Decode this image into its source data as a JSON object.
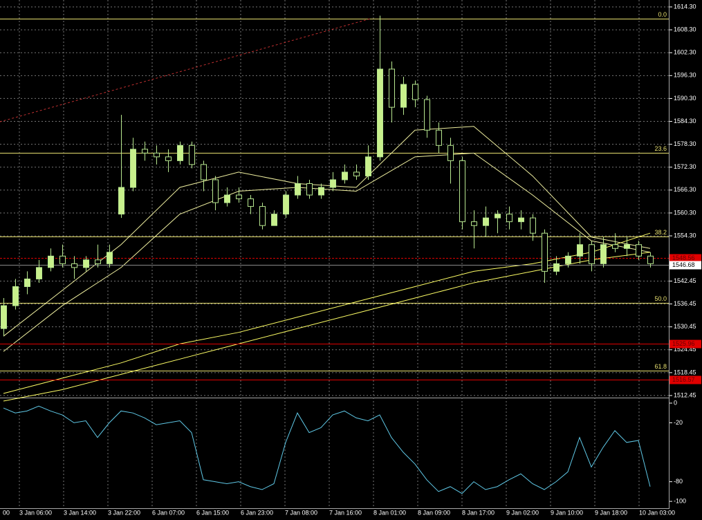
{
  "chart_data": [
    {
      "type": "candlestick",
      "x_labels": [
        "00",
        "3 Jan 06:00",
        "3 Jan 14:00",
        "3 Jan 22:00",
        "6 Jan 07:00",
        "6 Jan 15:00",
        "6 Jan 23:00",
        "7 Jan 08:00",
        "7 Jan 16:00",
        "8 Jan 01:00",
        "8 Jan 09:00",
        "8 Jan 17:00",
        "9 Jan 02:00",
        "9 Jan 10:00",
        "9 Jan 18:00",
        "10 Jan 03:00"
      ],
      "open": [
        1530,
        1536,
        1541,
        1543,
        1546,
        1549,
        1547,
        1546,
        1548,
        1547,
        1560,
        1567,
        1577,
        1576,
        1575,
        1574,
        1578,
        1573,
        1569,
        1563,
        1565,
        1564,
        1562,
        1557,
        1560,
        1565,
        1568,
        1565,
        1567,
        1569,
        1571,
        1570,
        1575,
        1598,
        1588,
        1594,
        1590,
        1582,
        1578,
        1574,
        1558,
        1557,
        1559,
        1560,
        1558,
        1559,
        1555,
        1545,
        1547,
        1549,
        1552,
        1547,
        1552,
        1551,
        1552,
        1549
      ],
      "high": [
        1538,
        1543,
        1545,
        1548,
        1551,
        1552,
        1549,
        1549,
        1552,
        1552,
        1586,
        1580,
        1579,
        1578,
        1577,
        1579,
        1579,
        1574,
        1570,
        1567,
        1567,
        1565,
        1563,
        1561,
        1566,
        1570,
        1569,
        1568,
        1571,
        1573,
        1573,
        1578,
        1612,
        1600,
        1596,
        1595,
        1591,
        1584,
        1580,
        1575,
        1561,
        1562,
        1561,
        1562,
        1561,
        1560,
        1556,
        1549,
        1550,
        1555,
        1553,
        1554,
        1555,
        1554,
        1553,
        1550
      ],
      "low": [
        1528,
        1535,
        1539,
        1542,
        1545,
        1546,
        1543,
        1545,
        1546,
        1546,
        1559,
        1566,
        1574,
        1573,
        1571,
        1573,
        1572,
        1566,
        1561,
        1562,
        1563,
        1560,
        1556,
        1557,
        1559,
        1564,
        1564,
        1564,
        1566,
        1568,
        1569,
        1569,
        1574,
        1584,
        1586,
        1588,
        1580,
        1576,
        1568,
        1556,
        1551,
        1554,
        1555,
        1556,
        1556,
        1553,
        1542,
        1544,
        1546,
        1547,
        1545,
        1546,
        1550,
        1549,
        1548,
        1546
      ],
      "close": [
        1536,
        1541,
        1543,
        1546,
        1549,
        1547,
        1546,
        1548,
        1547,
        1550,
        1567,
        1577,
        1576,
        1575,
        1574,
        1578,
        1573,
        1569,
        1563,
        1565,
        1564,
        1562,
        1557,
        1560,
        1565,
        1568,
        1565,
        1567,
        1569,
        1571,
        1570,
        1575,
        1598,
        1588,
        1594,
        1590,
        1582,
        1578,
        1574,
        1558,
        1557,
        1559,
        1560,
        1558,
        1559,
        1555,
        1545,
        1547,
        1549,
        1552,
        1547,
        1552,
        1551,
        1552,
        1549,
        1547
      ],
      "colors": {
        "bull": "#c8f08c",
        "bear": "#000000",
        "wick": "#b8e890"
      },
      "ylim": [
        1512.27,
        1616.11
      ],
      "yticks": [
        {
          "value": 1614.3,
          "label": "1614.30"
        },
        {
          "value": 1608.3,
          "label": "1608.30"
        },
        {
          "value": 1602.3,
          "label": "1602.30"
        },
        {
          "value": 1596.3,
          "label": "1596.30"
        },
        {
          "value": 1590.3,
          "label": "1590.30"
        },
        {
          "value": 1584.3,
          "label": "1584.30"
        },
        {
          "value": 1578.3,
          "label": "1578.30"
        },
        {
          "value": 1572.3,
          "label": "1572.30"
        },
        {
          "value": 1566.3,
          "label": "1566.30"
        },
        {
          "value": 1560.3,
          "label": "1560.30"
        },
        {
          "value": 1554.3,
          "label": "1554.30"
        },
        1542.45,
        1536.45,
        1530.45,
        1524.45,
        1518.45,
        1512.45
      ],
      "grid": true,
      "moving_averages": [
        {
          "color": "#f0f0a0",
          "x": [
            0,
            5,
            10,
            15,
            20,
            25,
            30,
            35,
            40,
            45,
            50,
            55
          ],
          "values": [
            1528,
            1540,
            1552,
            1567,
            1571,
            1568,
            1567,
            1582,
            1583,
            1570,
            1554,
            1551
          ]
        },
        {
          "color": "#f0f0a0",
          "x": [
            0,
            5,
            10,
            15,
            20,
            25,
            30,
            35,
            40,
            45,
            50,
            55
          ],
          "values": [
            1524,
            1536,
            1546,
            1560,
            1566,
            1567,
            1566,
            1575,
            1576,
            1565,
            1553,
            1550
          ]
        },
        {
          "color": "#ffff66",
          "x": [
            0,
            5,
            10,
            15,
            20,
            25,
            30,
            35,
            40,
            45,
            50,
            55
          ],
          "values": [
            1513,
            1517,
            1521,
            1526,
            1529,
            1533,
            1537,
            1541,
            1545,
            1547,
            1550,
            1555
          ]
        },
        {
          "color": "#ffff66",
          "x": [
            0,
            5,
            10,
            15,
            20,
            25,
            30,
            35,
            40,
            45,
            50,
            55
          ],
          "values": [
            1511,
            1514,
            1518,
            1522,
            1526,
            1530,
            1534,
            1538,
            1542,
            1545,
            1548,
            1550
          ]
        }
      ],
      "fib_levels": [
        {
          "label": "0.0",
          "value": 1611.2
        },
        {
          "label": "23.6",
          "value": 1576.0
        },
        {
          "label": "38.2",
          "value": 1554.2
        },
        {
          "label": "50.0",
          "value": 1536.7
        },
        {
          "label": "61.8",
          "value": 1518.9
        }
      ],
      "fib_color": "#e8e070",
      "price_lines": [
        1548.56,
        1525.96,
        1516.57
      ],
      "price_line_color": "#e00000",
      "current_price": 1546.68,
      "trendline": {
        "x": [
          -0.3,
          31.2
        ],
        "values": [
          1584.2,
          1611.2
        ],
        "color": "#c03030"
      }
    },
    {
      "type": "line",
      "color": "#5fc8e6",
      "values": [
        -5,
        -10,
        -8,
        -3,
        -8,
        -12,
        -20,
        -18,
        -35,
        -20,
        -8,
        -10,
        -15,
        -22,
        -20,
        -18,
        -30,
        -78,
        -80,
        -82,
        -80,
        -85,
        -88,
        -82,
        -40,
        -10,
        -30,
        -25,
        -12,
        -8,
        -15,
        -18,
        -12,
        -35,
        -50,
        -62,
        -78,
        -90,
        -85,
        -92,
        -80,
        -88,
        -85,
        -78,
        -72,
        -82,
        -88,
        -80,
        -70,
        -35,
        -65,
        -45,
        -28,
        -40,
        -38,
        -85
      ],
      "ylim": [
        -107,
        3.5
      ],
      "yticks": [
        0,
        -20,
        -80,
        -100
      ]
    }
  ]
}
